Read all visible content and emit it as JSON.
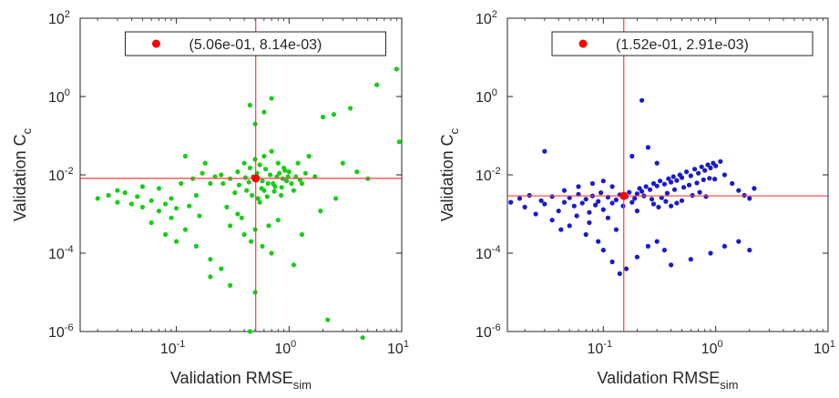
{
  "chart_data": [
    {
      "type": "scatter",
      "xlabel": "Validation RMSE",
      "xlabel_sub": "sim",
      "ylabel": "Validation C",
      "ylabel_sub": "c",
      "xscale": "log",
      "yscale": "log",
      "xlim": [
        0.014,
        10
      ],
      "ylim": [
        1e-06,
        100
      ],
      "xticks": [
        {
          "value": 0.1,
          "base": "10",
          "exp": "-1"
        },
        {
          "value": 1,
          "base": "10",
          "exp": "0"
        },
        {
          "value": 10,
          "base": "10",
          "exp": "1"
        }
      ],
      "yticks": [
        {
          "value": 1e-06,
          "base": "10",
          "exp": "-6"
        },
        {
          "value": 0.0001,
          "base": "10",
          "exp": "-4"
        },
        {
          "value": 0.01,
          "base": "10",
          "exp": "-2"
        },
        {
          "value": 1,
          "base": "10",
          "exp": "0"
        },
        {
          "value": 100,
          "base": "10",
          "exp": "2"
        }
      ],
      "grid": false,
      "legend_position": "top",
      "legend_text": "(5.06e-01, 8.14e-03)",
      "marker_color": "#19cc19",
      "median_color": "#ff0000",
      "crosshair_color": "#f04040",
      "median": [
        0.506,
        0.00814
      ],
      "points": [
        [
          0.02,
          0.0025
        ],
        [
          0.025,
          0.003
        ],
        [
          0.03,
          0.002
        ],
        [
          0.035,
          0.0035
        ],
        [
          0.04,
          0.0018
        ],
        [
          0.045,
          0.0028
        ],
        [
          0.05,
          0.0015
        ],
        [
          0.06,
          0.0022
        ],
        [
          0.07,
          0.0012
        ],
        [
          0.08,
          0.0018
        ],
        [
          0.09,
          0.0008
        ],
        [
          0.1,
          0.0014
        ],
        [
          0.03,
          0.004
        ],
        [
          0.05,
          0.005
        ],
        [
          0.07,
          0.0045
        ],
        [
          0.06,
          0.0006
        ],
        [
          0.08,
          0.0003
        ],
        [
          0.1,
          0.0002
        ],
        [
          0.12,
          0.0004
        ],
        [
          0.15,
          0.00015
        ],
        [
          0.2,
          7e-05
        ],
        [
          0.25,
          4e-05
        ],
        [
          0.3,
          0.0005
        ],
        [
          0.35,
          0.001
        ],
        [
          0.15,
          0.003
        ],
        [
          0.2,
          0.006
        ],
        [
          0.25,
          0.01
        ],
        [
          0.3,
          0.008
        ],
        [
          0.35,
          0.012
        ],
        [
          0.4,
          0.02
        ],
        [
          0.45,
          0.015
        ],
        [
          0.5,
          0.025
        ],
        [
          0.55,
          0.018
        ],
        [
          0.6,
          0.03
        ],
        [
          0.7,
          0.04
        ],
        [
          0.8,
          0.02
        ],
        [
          0.9,
          0.015
        ],
        [
          1.0,
          0.012
        ],
        [
          1.2,
          0.02
        ],
        [
          1.5,
          0.03
        ],
        [
          2.0,
          0.3
        ],
        [
          2.5,
          0.35
        ],
        [
          3.0,
          0.02
        ],
        [
          4.0,
          0.012
        ],
        [
          5.0,
          0.008
        ],
        [
          9.0,
          5.0
        ],
        [
          9.5,
          0.07
        ],
        [
          2.2,
          2e-06
        ],
        [
          4.5,
          7e-07
        ],
        [
          0.45,
          1e-06
        ],
        [
          0.3,
          1.5e-05
        ],
        [
          0.2,
          2.5e-05
        ],
        [
          1.1,
          5e-05
        ],
        [
          0.7,
          0.0001
        ],
        [
          0.4,
          0.0003
        ],
        [
          0.5,
          1e-05
        ],
        [
          0.55,
          0.002
        ],
        [
          0.6,
          0.004
        ],
        [
          0.65,
          0.006
        ],
        [
          0.75,
          0.005
        ],
        [
          0.85,
          0.003
        ],
        [
          0.95,
          0.007
        ],
        [
          1.1,
          0.004
        ],
        [
          1.3,
          0.006
        ],
        [
          0.5,
          0.2
        ],
        [
          0.6,
          0.4
        ],
        [
          0.45,
          0.6
        ],
        [
          0.7,
          0.9
        ],
        [
          3.5,
          0.5
        ],
        [
          6.0,
          2.0
        ],
        [
          0.12,
          0.03
        ],
        [
          0.18,
          0.02
        ],
        [
          0.28,
          0.0015
        ],
        [
          0.38,
          0.0008
        ],
        [
          0.42,
          0.004
        ],
        [
          0.48,
          0.009
        ],
        [
          0.52,
          0.011
        ],
        [
          0.58,
          0.007
        ],
        [
          0.62,
          0.014
        ],
        [
          0.68,
          0.01
        ],
        [
          0.72,
          0.006
        ],
        [
          0.78,
          0.009
        ],
        [
          0.82,
          0.011
        ],
        [
          0.88,
          0.008
        ],
        [
          0.92,
          0.013
        ],
        [
          0.98,
          0.009
        ],
        [
          1.05,
          0.006
        ],
        [
          0.47,
          0.003
        ],
        [
          0.53,
          0.0025
        ],
        [
          0.57,
          0.0045
        ],
        [
          0.44,
          0.0065
        ],
        [
          0.41,
          0.0085
        ],
        [
          0.36,
          0.0055
        ],
        [
          0.33,
          0.0035
        ],
        [
          0.64,
          0.0028
        ],
        [
          0.74,
          0.0038
        ],
        [
          0.86,
          0.0048
        ],
        [
          1.15,
          0.009
        ],
        [
          1.25,
          0.0075
        ],
        [
          1.4,
          0.011
        ],
        [
          1.7,
          0.009
        ],
        [
          0.26,
          0.006
        ],
        [
          0.22,
          0.009
        ],
        [
          0.17,
          0.011
        ],
        [
          0.14,
          0.008
        ],
        [
          0.11,
          0.006
        ],
        [
          0.16,
          0.0009
        ],
        [
          0.13,
          0.0016
        ],
        [
          0.09,
          0.0025
        ],
        [
          0.5,
          0.0004
        ],
        [
          0.46,
          0.0002
        ],
        [
          0.58,
          0.00015
        ],
        [
          0.66,
          0.0005
        ],
        [
          0.8,
          0.0007
        ],
        [
          1.3,
          0.0003
        ],
        [
          1.9,
          0.0012
        ],
        [
          2.6,
          0.0025
        ]
      ]
    },
    {
      "type": "scatter",
      "xlabel": "Validation RMSE",
      "xlabel_sub": "sim",
      "ylabel": "Validation C",
      "ylabel_sub": "c",
      "xscale": "log",
      "yscale": "log",
      "xlim": [
        0.014,
        10
      ],
      "ylim": [
        1e-06,
        100
      ],
      "xticks": [
        {
          "value": 0.1,
          "base": "10",
          "exp": "-1"
        },
        {
          "value": 1,
          "base": "10",
          "exp": "0"
        },
        {
          "value": 10,
          "base": "10",
          "exp": "1"
        }
      ],
      "yticks": [
        {
          "value": 1e-06,
          "base": "10",
          "exp": "-6"
        },
        {
          "value": 0.0001,
          "base": "10",
          "exp": "-4"
        },
        {
          "value": 0.01,
          "base": "10",
          "exp": "-2"
        },
        {
          "value": 1,
          "base": "10",
          "exp": "0"
        },
        {
          "value": 100,
          "base": "10",
          "exp": "2"
        }
      ],
      "grid": false,
      "legend_position": "top",
      "legend_text": "(1.52e-01, 2.91e-03)",
      "marker_color": "#1a1acc",
      "median_color": "#ff0000",
      "crosshair_color": "#f04040",
      "median": [
        0.152,
        0.00291
      ],
      "points": [
        [
          0.015,
          0.002
        ],
        [
          0.018,
          0.0025
        ],
        [
          0.02,
          0.0015
        ],
        [
          0.022,
          0.003
        ],
        [
          0.025,
          0.001
        ],
        [
          0.028,
          0.0022
        ],
        [
          0.03,
          0.0018
        ],
        [
          0.035,
          0.0028
        ],
        [
          0.04,
          0.0012
        ],
        [
          0.045,
          0.002
        ],
        [
          0.05,
          0.0026
        ],
        [
          0.055,
          0.0016
        ],
        [
          0.06,
          0.0032
        ],
        [
          0.065,
          0.0019
        ],
        [
          0.07,
          0.0024
        ],
        [
          0.075,
          0.0011
        ],
        [
          0.08,
          0.0029
        ],
        [
          0.085,
          0.0017
        ],
        [
          0.09,
          0.0021
        ],
        [
          0.095,
          0.0035
        ],
        [
          0.1,
          0.0013
        ],
        [
          0.11,
          0.0027
        ],
        [
          0.12,
          0.0019
        ],
        [
          0.13,
          0.0023
        ],
        [
          0.14,
          0.0031
        ],
        [
          0.15,
          0.0016
        ],
        [
          0.16,
          0.0028
        ],
        [
          0.17,
          0.0036
        ],
        [
          0.18,
          0.002
        ],
        [
          0.19,
          0.0025
        ],
        [
          0.2,
          0.0033
        ],
        [
          0.21,
          0.0045
        ],
        [
          0.22,
          0.0038
        ],
        [
          0.24,
          0.005
        ],
        [
          0.26,
          0.0042
        ],
        [
          0.28,
          0.006
        ],
        [
          0.3,
          0.0052
        ],
        [
          0.32,
          0.007
        ],
        [
          0.35,
          0.0058
        ],
        [
          0.38,
          0.008
        ],
        [
          0.4,
          0.0065
        ],
        [
          0.42,
          0.009
        ],
        [
          0.45,
          0.0072
        ],
        [
          0.48,
          0.01
        ],
        [
          0.5,
          0.0085
        ],
        [
          0.55,
          0.012
        ],
        [
          0.6,
          0.0095
        ],
        [
          0.65,
          0.014
        ],
        [
          0.7,
          0.011
        ],
        [
          0.75,
          0.016
        ],
        [
          0.8,
          0.013
        ],
        [
          0.85,
          0.018
        ],
        [
          0.9,
          0.015
        ],
        [
          0.95,
          0.02
        ],
        [
          1.0,
          0.017
        ],
        [
          1.1,
          0.022
        ],
        [
          1.2,
          0.01
        ],
        [
          1.4,
          0.006
        ],
        [
          1.6,
          0.004
        ],
        [
          1.8,
          0.003
        ],
        [
          2.0,
          0.0025
        ],
        [
          2.2,
          0.0045
        ],
        [
          0.03,
          0.04
        ],
        [
          0.05,
          0.0005
        ],
        [
          0.07,
          0.0003
        ],
        [
          0.09,
          0.0002
        ],
        [
          0.1,
          0.00012
        ],
        [
          0.12,
          6e-05
        ],
        [
          0.14,
          3e-05
        ],
        [
          0.16,
          4e-05
        ],
        [
          0.2,
          8e-05
        ],
        [
          0.25,
          0.00015
        ],
        [
          0.3,
          0.0002
        ],
        [
          0.35,
          0.00012
        ],
        [
          0.4,
          5e-05
        ],
        [
          0.6,
          7e-05
        ],
        [
          0.9,
          0.0001
        ],
        [
          1.2,
          0.00015
        ],
        [
          1.6,
          0.0002
        ],
        [
          2.0,
          0.00012
        ],
        [
          0.22,
          0.8
        ],
        [
          0.18,
          0.03
        ],
        [
          0.25,
          0.05
        ],
        [
          0.3,
          0.02
        ],
        [
          0.045,
          0.004
        ],
        [
          0.06,
          0.005
        ],
        [
          0.08,
          0.006
        ],
        [
          0.1,
          0.007
        ],
        [
          0.12,
          0.005
        ],
        [
          0.035,
          0.0007
        ],
        [
          0.042,
          0.0004
        ],
        [
          0.058,
          0.0009
        ],
        [
          0.075,
          0.0006
        ],
        [
          0.11,
          0.0008
        ],
        [
          0.13,
          0.0004
        ],
        [
          0.2,
          0.0012
        ],
        [
          0.28,
          0.0018
        ],
        [
          0.33,
          0.0026
        ],
        [
          0.37,
          0.0034
        ],
        [
          0.43,
          0.0042
        ],
        [
          0.52,
          0.0048
        ],
        [
          0.58,
          0.0055
        ],
        [
          0.68,
          0.0062
        ],
        [
          0.78,
          0.0075
        ],
        [
          0.88,
          0.0082
        ],
        [
          0.98,
          0.0078
        ],
        [
          0.62,
          0.003
        ],
        [
          0.72,
          0.0036
        ],
        [
          0.82,
          0.0028
        ],
        [
          0.5,
          0.0022
        ],
        [
          0.45,
          0.0019
        ],
        [
          0.4,
          0.0016
        ],
        [
          0.36,
          0.0021
        ],
        [
          0.31,
          0.0015
        ],
        [
          0.27,
          0.0024
        ],
        [
          0.23,
          0.0029
        ]
      ]
    }
  ]
}
